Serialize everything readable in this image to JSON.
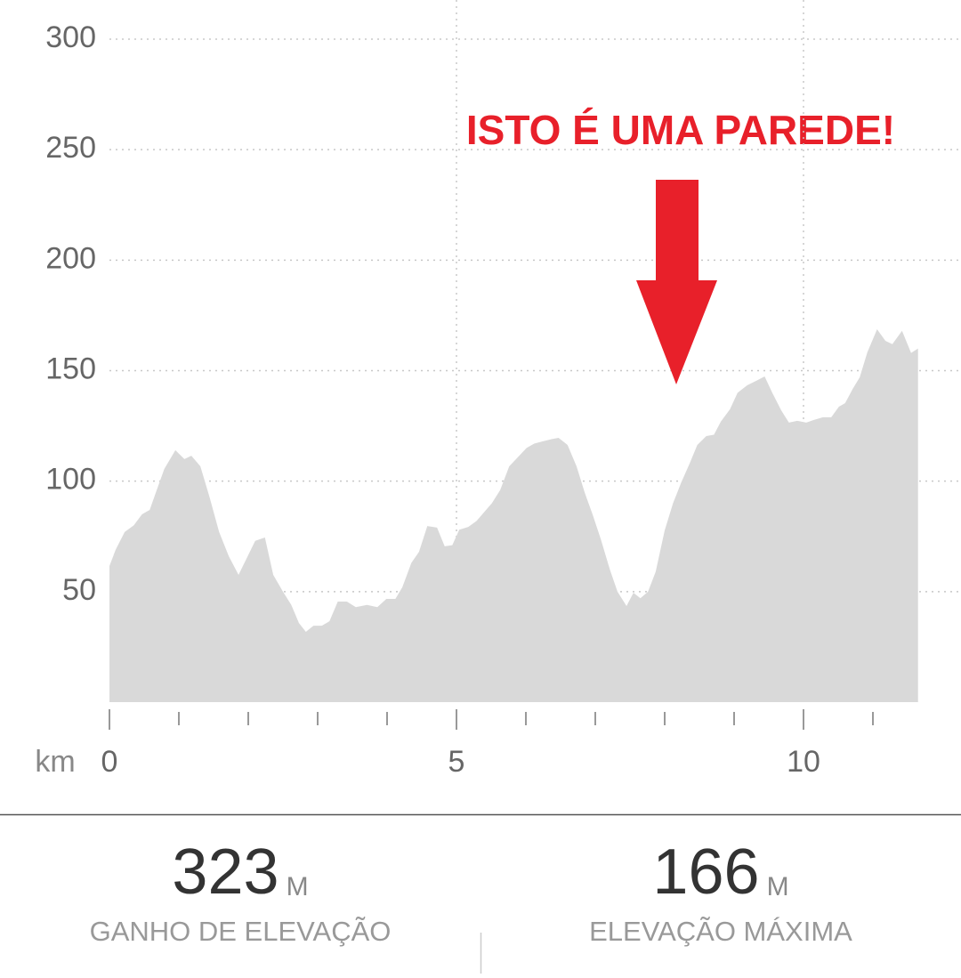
{
  "chart_data": {
    "type": "area",
    "annotation": "ISTO É UMA PAREDE!",
    "x_label": "km",
    "color": "#d9d9d9",
    "xlim": [
      0,
      11.65
    ],
    "ylim": [
      0,
      300
    ],
    "xticks": [
      0,
      5,
      10
    ],
    "x_minor_ticks": [
      1,
      2,
      3,
      4,
      6,
      7,
      8,
      9,
      11
    ],
    "yticks": [
      50,
      100,
      150,
      200,
      250,
      300
    ],
    "grid": true,
    "x": [
      0,
      0.09,
      0.22,
      0.35,
      0.47,
      0.58,
      0.67,
      0.79,
      0.95,
      1.08,
      1.18,
      1.31,
      1.44,
      1.58,
      1.72,
      1.86,
      1.96,
      2.1,
      2.24,
      2.36,
      2.5,
      2.62,
      2.73,
      2.83,
      2.94,
      3.06,
      3.17,
      3.29,
      3.42,
      3.55,
      3.71,
      3.86,
      3.99,
      4.12,
      4.22,
      4.35,
      4.46,
      4.58,
      4.72,
      4.83,
      4.94,
      5.04,
      5.17,
      5.29,
      5.4,
      5.51,
      5.63,
      5.76,
      5.88,
      6.01,
      6.12,
      6.24,
      6.37,
      6.47,
      6.6,
      6.73,
      6.85,
      6.96,
      7.08,
      7.21,
      7.32,
      7.45,
      7.55,
      7.65,
      7.76,
      7.87,
      8.0,
      8.12,
      8.24,
      8.36,
      8.47,
      8.6,
      8.71,
      8.81,
      8.94,
      9.05,
      9.19,
      9.32,
      9.44,
      9.55,
      9.68,
      9.79,
      9.91,
      10.04,
      10.15,
      10.28,
      10.4,
      10.51,
      10.6,
      10.71,
      10.81,
      10.92,
      11.06,
      11.18,
      11.28,
      11.42,
      11.55,
      11.65
    ],
    "values": [
      61.6,
      69,
      77,
      80,
      85,
      87,
      95,
      105.5,
      114,
      110,
      111.5,
      106.7,
      93,
      77,
      66,
      57.6,
      64,
      73,
      74.5,
      57.6,
      50,
      44,
      35.8,
      31.8,
      34.6,
      34.6,
      36.6,
      45.5,
      45.5,
      43,
      44,
      43,
      46.7,
      46.7,
      52,
      63,
      68,
      79.7,
      79,
      70.5,
      71,
      78,
      79.3,
      82,
      86,
      90,
      96,
      106.7,
      110.7,
      115,
      117,
      118,
      119,
      119.6,
      116.4,
      106.7,
      94.6,
      85,
      73.7,
      60,
      50,
      43.5,
      49.5,
      47,
      50,
      59,
      77.7,
      90,
      99.5,
      108,
      116.4,
      120.4,
      121,
      127,
      132.5,
      140,
      143.4,
      145.4,
      147.4,
      140,
      132,
      126.5,
      127.3,
      126.5,
      127.7,
      128.9,
      128.9,
      133.7,
      135.3,
      141.8,
      147,
      158.3,
      168.7,
      163.5,
      162,
      168,
      158,
      160
    ]
  },
  "stats": [
    {
      "value": "323",
      "unit": "M",
      "label": "GANHO DE ELEVAÇÃO"
    },
    {
      "value": "166",
      "unit": "M",
      "label": "ELEVAÇÃO MÁXIMA"
    }
  ]
}
